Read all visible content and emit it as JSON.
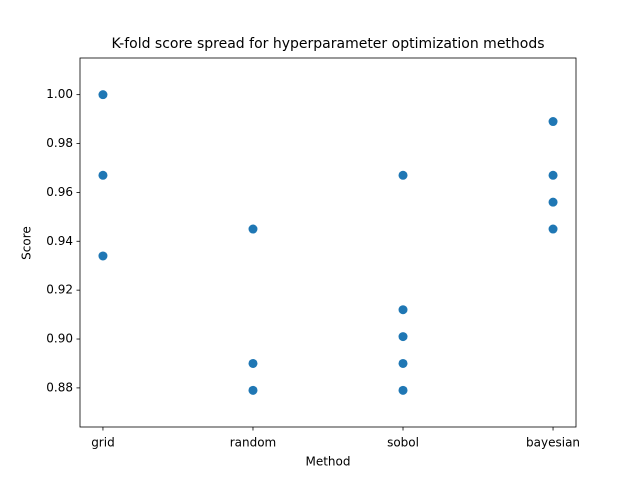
{
  "chart_data": {
    "type": "scatter",
    "title": "K-fold score spread for hyperparameter optimization methods",
    "x_label": "Method",
    "y_label": "Score",
    "series": [
      {
        "color": "#1f77b4",
        "x": [
          0,
          0,
          0,
          1,
          1,
          1,
          2,
          2,
          2,
          2,
          2,
          3,
          3,
          3,
          3
        ],
        "values": [
          1.0,
          0.967,
          0.934,
          0.945,
          0.89,
          0.879,
          0.967,
          0.912,
          0.901,
          0.89,
          0.879,
          0.989,
          0.967,
          0.956,
          0.945
        ]
      }
    ],
    "xlim": [
      -0.153,
      3.153
    ],
    "xticks": [
      {
        "value": 0,
        "label": "grid"
      },
      {
        "value": 1,
        "label": "random"
      },
      {
        "value": 2,
        "label": "sobol"
      },
      {
        "value": 3,
        "label": "bayesian"
      }
    ],
    "ylim": [
      0.864,
      1.015
    ],
    "yticks": [
      0.88,
      {
        "value": 0.9,
        "label": "0.90"
      },
      0.92,
      0.94,
      0.96,
      0.98,
      {
        "value": 1.0,
        "label": "1.00"
      }
    ],
    "grid": false
  }
}
